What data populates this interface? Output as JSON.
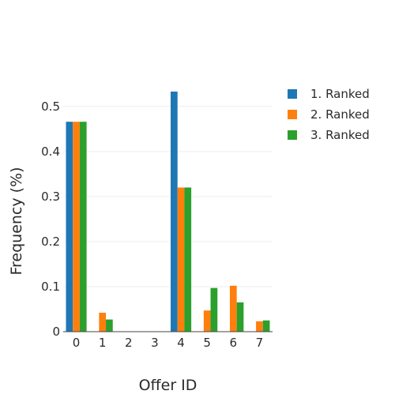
{
  "chart_data": {
    "type": "bar",
    "categories": [
      "0",
      "1",
      "2",
      "3",
      "4",
      "5",
      "6",
      "7"
    ],
    "series": [
      {
        "name": "1. Ranked",
        "color": "#1f77b4",
        "values": [
          0.466,
          0,
          0,
          0,
          0.533,
          0,
          0,
          0
        ]
      },
      {
        "name": "2. Ranked",
        "color": "#ff7f0e",
        "values": [
          0.466,
          0.042,
          0,
          0,
          0.32,
          0.047,
          0.102,
          0.023
        ]
      },
      {
        "name": "3. Ranked",
        "color": "#2ca02c",
        "values": [
          0.466,
          0.027,
          0,
          0,
          0.32,
          0.097,
          0.065,
          0.025
        ]
      }
    ],
    "xlabel": "Offer ID",
    "ylabel": "Frequency (%)",
    "ylim": [
      0,
      0.561
    ],
    "yticks": [
      0,
      0.1,
      0.2,
      0.3,
      0.4,
      0.5
    ],
    "ytick_labels": [
      "0",
      "0.1",
      "0.2",
      "0.3",
      "0.4",
      "0.5"
    ],
    "grid": true,
    "legend_position": "top-right"
  }
}
